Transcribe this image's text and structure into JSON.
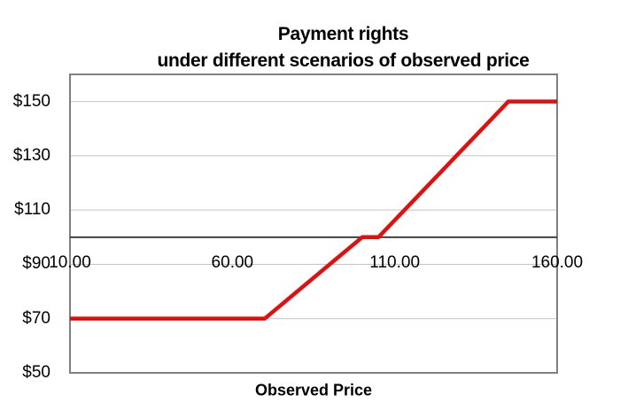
{
  "chart_data": {
    "type": "line",
    "title": "Payment rights",
    "subtitle": "under different scenarios of observed price",
    "xlabel": "Observed Price",
    "ylabel": "",
    "xlim": [
      10,
      160
    ],
    "ylim": [
      50,
      160
    ],
    "x_axis_crosses_at": 100,
    "x_tick_values": [
      10,
      60,
      110,
      160
    ],
    "x_tick_labels": [
      "10.00",
      "60.00",
      "110.00",
      "160.00"
    ],
    "y_tick_values": [
      50,
      70,
      90,
      110,
      130,
      150
    ],
    "y_tick_labels": [
      "$50",
      "$70",
      "$90",
      "$110",
      "$130",
      "$150"
    ],
    "grid": "horizontal gridlines at each y tick",
    "legend": "none",
    "series": [
      {
        "name": "Payment rights",
        "color": "#e01010",
        "points": [
          [
            10,
            70
          ],
          [
            70,
            70
          ],
          [
            100,
            100
          ],
          [
            105,
            100
          ],
          [
            145,
            150
          ],
          [
            160,
            150
          ]
        ]
      }
    ]
  },
  "colors": {
    "background": "#ffffff",
    "text": "#000000",
    "gridline": "#c4c4c4",
    "plot_border": "#808080",
    "axis_line": "#404040",
    "series_red": "#e01010"
  }
}
